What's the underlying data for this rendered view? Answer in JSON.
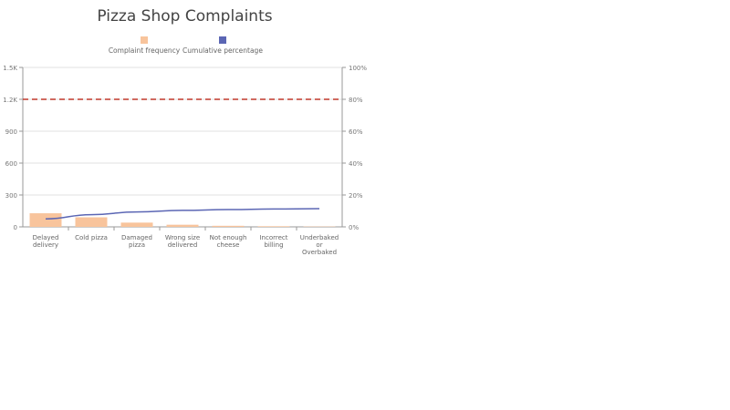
{
  "chart_data": {
    "type": "bar",
    "title": "Pizza Shop Complaints",
    "categories": [
      "Delayed delivery",
      "Cold pizza",
      "Damaged pizza",
      "Wrong size delivered",
      "Not enough cheese",
      "Incorrect billing",
      "Underbaked or Overbaked"
    ],
    "category_lines": [
      [
        "Delayed",
        "delivery"
      ],
      [
        "Cold pizza"
      ],
      [
        "Damaged",
        "pizza"
      ],
      [
        "Wrong size",
        "delivered"
      ],
      [
        "Not enough",
        "cheese"
      ],
      [
        "Incorrect",
        "billing"
      ],
      [
        "Underbaked",
        "or",
        "Overbaked"
      ]
    ],
    "series": [
      {
        "name": "Complaint frequency",
        "type": "bar",
        "axis": "left",
        "color": "#f8c49c",
        "values": [
          128,
          90,
          40,
          20,
          10,
          6,
          3
        ]
      },
      {
        "name": "Cumulative percentage",
        "type": "line",
        "axis": "left-scaled",
        "color": "#5b66b4",
        "values": [
          75,
          115,
          140,
          155,
          163,
          168,
          171
        ]
      }
    ],
    "y_left": {
      "ylim": [
        0,
        1500
      ],
      "ticks": [
        "0",
        "300",
        "600",
        "900",
        "1.2K",
        "1.5K"
      ],
      "tick_values": [
        0,
        300,
        600,
        900,
        1200,
        1500
      ]
    },
    "y_right": {
      "ylim": [
        0,
        100
      ],
      "ticks": [
        "0%",
        "20%",
        "40%",
        "60%",
        "80%",
        "100%"
      ]
    },
    "reference_line": {
      "value_percent": 80,
      "color": "#c0392b",
      "style": "dashed"
    },
    "xlabel": "",
    "ylabel": "",
    "grid": true,
    "legend_position": "top"
  },
  "legend": [
    {
      "label": "Complaint frequency",
      "color": "#f8c49c"
    },
    {
      "label": "Cumulative percentage",
      "color": "#5b66b4"
    }
  ]
}
